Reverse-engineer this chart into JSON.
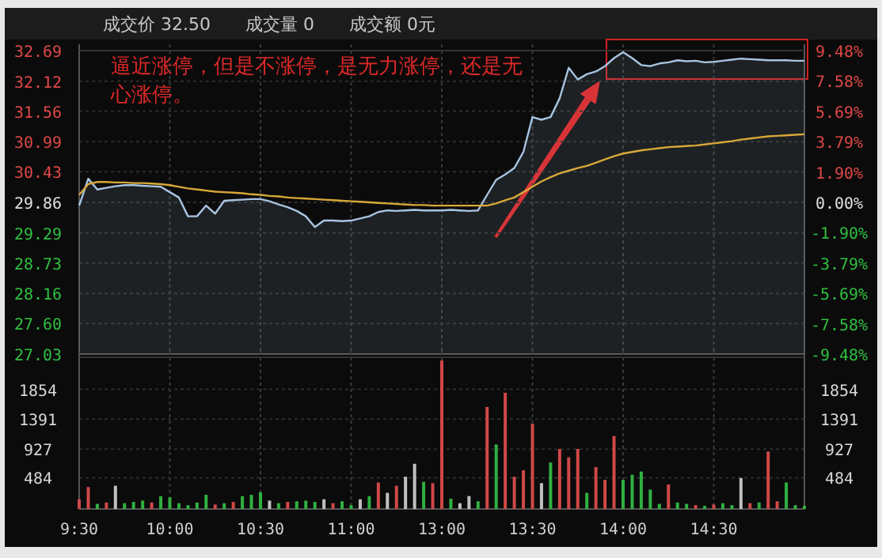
{
  "chart_data": [
    {
      "type": "area",
      "title": "成交价 32.50　　成交量 0　　成交额 0元",
      "annotations": [
        "逼近涨停，但是不涨停，是无力涨停，还是无心涨停。"
      ],
      "categories": [
        null,
        null,
        null,
        null,
        null,
        null,
        null,
        null,
        null,
        null,
        null,
        null,
        null,
        null,
        null,
        null,
        null,
        null,
        null,
        null,
        null,
        null,
        null,
        null,
        null,
        null,
        null,
        null,
        null,
        null,
        null,
        null,
        null,
        null,
        null,
        null,
        null,
        null,
        null,
        null,
        null,
        null,
        null,
        null,
        null,
        null,
        null,
        null,
        null,
        null,
        null,
        null,
        null,
        null,
        null,
        null,
        null,
        null,
        null,
        null,
        null,
        null,
        null,
        null,
        null,
        null,
        null,
        null,
        null,
        null,
        null,
        null,
        null,
        null,
        null,
        null,
        null,
        null,
        null,
        null,
        null
      ],
      "series": [
        {
          "color": "#a8c4e0",
          "values": [
            29.8,
            30.3,
            30.1,
            30.13,
            30.16,
            30.18,
            30.18,
            30.17,
            30.16,
            30.15,
            30.05,
            29.95,
            29.6,
            29.6,
            29.8,
            29.65,
            29.89,
            29.9,
            29.91,
            29.92,
            29.92,
            29.88,
            29.82,
            29.77,
            29.7,
            29.6,
            29.4,
            29.52,
            29.52,
            29.51,
            29.52,
            29.56,
            29.6,
            29.68,
            29.71,
            29.7,
            29.71,
            29.72,
            29.71,
            29.71,
            29.71,
            29.72,
            29.71,
            29.7,
            29.71,
            30.0,
            30.28,
            30.38,
            30.5,
            30.8,
            31.45,
            31.4,
            31.45,
            31.8,
            32.37,
            32.15,
            32.25,
            32.3,
            32.4,
            32.55,
            32.66,
            32.55,
            32.42,
            32.4,
            32.45,
            32.47,
            32.51,
            32.49,
            32.5,
            32.47,
            32.48,
            32.5,
            32.52,
            32.54,
            32.53,
            32.52,
            32.51,
            32.51,
            32.51,
            32.5,
            32.5
          ]
        },
        {
          "type": "line",
          "color": "#d8a838",
          "values": [
            30.0,
            30.2,
            30.24,
            30.24,
            30.23,
            30.23,
            30.22,
            30.22,
            30.21,
            30.2,
            30.18,
            30.15,
            30.12,
            30.1,
            30.08,
            30.06,
            30.05,
            30.04,
            30.03,
            30.01,
            30.0,
            29.98,
            29.97,
            29.95,
            29.94,
            29.93,
            29.92,
            29.91,
            29.9,
            29.89,
            29.88,
            29.87,
            29.86,
            29.85,
            29.84,
            29.83,
            29.82,
            29.81,
            29.81,
            29.8,
            29.8,
            29.8,
            29.8,
            29.8,
            29.8,
            29.8,
            29.84,
            29.9,
            29.95,
            30.05,
            30.15,
            30.25,
            30.33,
            30.4,
            30.45,
            30.5,
            30.54,
            30.6,
            30.66,
            30.72,
            30.77,
            30.8,
            30.83,
            30.85,
            30.87,
            30.89,
            30.9,
            30.91,
            30.92,
            30.94,
            30.96,
            30.98,
            31.0,
            31.03,
            31.05,
            31.07,
            31.09,
            31.1,
            31.11,
            31.12,
            31.13
          ]
        }
      ],
      "ylim": [
        27.03,
        32.69
      ],
      "yticks": [
        32.69,
        32.12,
        31.56,
        30.99,
        30.43,
        29.86,
        29.29,
        28.73,
        28.16,
        {
          "value": 27.6,
          "label": "27.60"
        },
        27.03
      ],
      "y2lim": [
        -9.48,
        9.48
      ],
      "y2ticks": [
        {
          "value": 9.48,
          "label": "9.48%"
        },
        {
          "value": 7.58,
          "label": "7.58%"
        },
        {
          "value": 5.69,
          "label": "5.69%"
        },
        {
          "value": 3.79,
          "label": "3.79%"
        },
        {
          "value": 1.9,
          "label": "1.90%"
        },
        {
          "value": 0,
          "label": "0.00%"
        },
        {
          "value": -1.9,
          "label": "-1.90%"
        },
        {
          "value": -3.79,
          "label": "-3.79%"
        },
        {
          "value": -5.69,
          "label": "-5.69%"
        },
        {
          "value": -7.58,
          "label": "-7.58%"
        },
        {
          "value": -9.48,
          "label": "-9.48%"
        }
      ],
      "grid": true,
      "tick_labels": "y"
    },
    {
      "type": "bar",
      "categories": [
        "9:30",
        null,
        null,
        null,
        null,
        null,
        null,
        null,
        null,
        null,
        "10:00",
        null,
        null,
        null,
        null,
        null,
        null,
        null,
        null,
        null,
        "10:30",
        null,
        null,
        null,
        null,
        null,
        null,
        null,
        null,
        null,
        "11:00",
        null,
        null,
        null,
        null,
        null,
        null,
        null,
        null,
        null,
        "13:00",
        null,
        null,
        null,
        null,
        null,
        null,
        null,
        null,
        null,
        "13:30",
        null,
        null,
        null,
        null,
        null,
        null,
        null,
        null,
        null,
        "14:00",
        null,
        null,
        null,
        null,
        null,
        null,
        null,
        null,
        null,
        "14:30",
        null,
        null,
        null,
        null,
        null,
        null,
        null,
        null,
        null,
        null
      ],
      "values": [
        150,
        340,
        80,
        100,
        360,
        90,
        110,
        130,
        100,
        200,
        180,
        90,
        60,
        100,
        220,
        70,
        90,
        110,
        200,
        220,
        260,
        130,
        90,
        110,
        120,
        130,
        110,
        150,
        90,
        120,
        60,
        150,
        200,
        410,
        250,
        360,
        500,
        700,
        420,
        400,
        2300,
        160,
        90,
        200,
        120,
        1580,
        1000,
        1800,
        500,
        600,
        1320,
        400,
        720,
        930,
        800,
        930,
        250,
        650,
        450,
        1130,
        450,
        530,
        580,
        300,
        80,
        380,
        100,
        80,
        60,
        50,
        70,
        90,
        60,
        480,
        90,
        100,
        890,
        120,
        410,
        60,
        50
      ],
      "colors": [
        "#d04848",
        "#d04848",
        "#30b040",
        "#d04848",
        "#c0c0c0",
        "#30b040",
        "#30b040",
        "#30b040",
        "#d04848",
        "#30b040",
        "#30b040",
        "#30b040",
        "#30b040",
        "#30b040",
        "#30b040",
        "#d04848",
        "#30b040",
        "#d04848",
        "#30b040",
        "#30b040",
        "#30b040",
        "#c0c0c0",
        "#30b040",
        "#d04848",
        "#30b040",
        "#30b040",
        "#30b040",
        "#c0c0c0",
        "#d04848",
        "#30b040",
        "#30b040",
        "#c0c0c0",
        "#30b040",
        "#d04848",
        "#c0c0c0",
        "#d04848",
        "#c0c0c0",
        "#c0c0c0",
        "#30b040",
        "#d04848",
        "#d04848",
        "#30b040",
        "#c0c0c0",
        "#c0c0c0",
        "#30b040",
        "#d04848",
        "#30b040",
        "#d04848",
        "#d04848",
        "#d04848",
        "#d04848",
        "#c0c0c0",
        "#30b040",
        "#d04848",
        "#d04848",
        "#d04848",
        "#30b040",
        "#d04848",
        "#d04848",
        "#d04848",
        "#30b040",
        "#30b040",
        "#30b040",
        "#30b040",
        "#30b040",
        "#d04848",
        "#30b040",
        "#30b040",
        "#d04848",
        "#30b040",
        "#d04848",
        "#30b040",
        "#30b040",
        "#c0c0c0",
        "#d04848",
        "#30b040",
        "#d04848",
        "#d04848",
        "#30b040",
        "#30b040",
        "#30b040"
      ],
      "ylim": [
        0,
        2350
      ],
      "yticks": [
        484,
        927,
        1391,
        1854
      ],
      "y2lim": [
        0,
        2350
      ],
      "y2ticks": [
        484,
        927,
        1391,
        1854
      ],
      "grid": true
    }
  ]
}
